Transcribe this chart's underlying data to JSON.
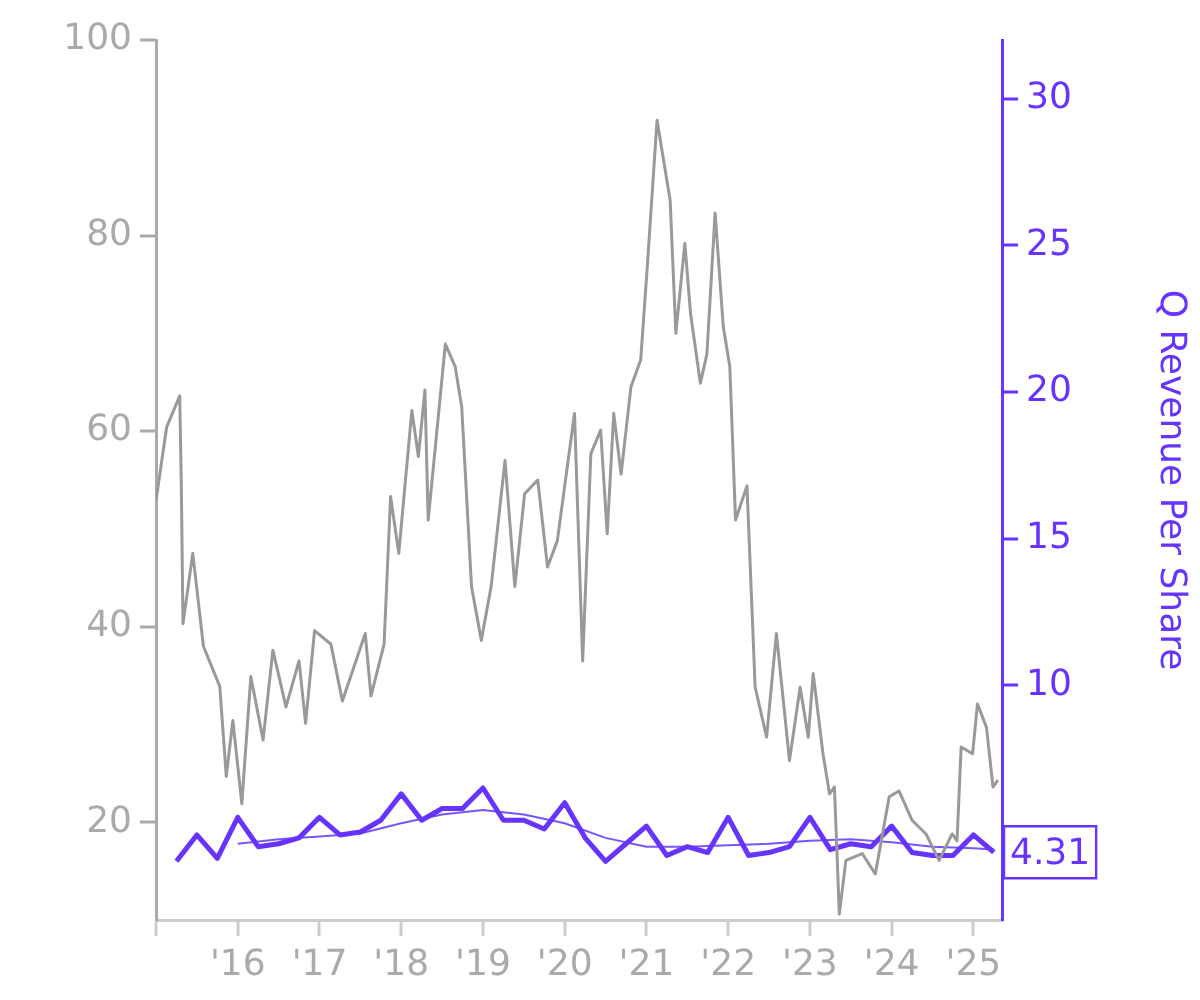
{
  "chart_data": {
    "type": "line",
    "y2label": "Q Revenue Per Share",
    "xlim": [
      2015,
      2025.35
    ],
    "xticks": [
      {
        "value": 2015,
        "label": null
      },
      {
        "value": 2016,
        "label": "'16"
      },
      {
        "value": 2017,
        "label": "'17"
      },
      {
        "value": 2018,
        "label": "'18"
      },
      {
        "value": 2019,
        "label": "'19"
      },
      {
        "value": 2020,
        "label": "'20"
      },
      {
        "value": 2021,
        "label": "'21"
      },
      {
        "value": 2022,
        "label": "'22"
      },
      {
        "value": 2023,
        "label": "'23"
      },
      {
        "value": 2024,
        "label": "'24"
      },
      {
        "value": 2025,
        "label": "'25"
      }
    ],
    "ylim": [
      10,
      100
    ],
    "yticks": [
      20,
      40,
      60,
      80,
      100
    ],
    "y2lim": [
      2,
      32
    ],
    "y2ticks": [
      10,
      15,
      20,
      25,
      30
    ],
    "grid": false,
    "legend": false,
    "marker": "none",
    "line_style": "solid",
    "series": [
      {
        "color": "#999999",
        "x": [
          2015.0,
          2015.13,
          2015.29,
          2015.31,
          2015.33,
          2015.45,
          2015.58,
          2015.78,
          2015.86,
          2015.94,
          2016.05,
          2016.16,
          2016.31,
          2016.43,
          2016.59,
          2016.75,
          2016.83,
          2016.94,
          2017.14,
          2017.28,
          2017.56,
          2017.63,
          2017.79,
          2017.87,
          2017.97,
          2018.13,
          2018.21,
          2018.29,
          2018.33,
          2018.54,
          2018.66,
          2018.74,
          2018.86,
          2018.98,
          2019.1,
          2019.27,
          2019.39,
          2019.51,
          2019.67,
          2019.79,
          2019.91,
          2020.0,
          2020.12,
          2020.22,
          2020.32,
          2020.44,
          2020.52,
          2020.6,
          2020.69,
          2020.81,
          2020.93,
          2021.01,
          2021.13,
          2021.21,
          2021.29,
          2021.36,
          2021.47,
          2021.54,
          2021.66,
          2021.74,
          2021.84,
          2021.94,
          2022.02,
          2022.09,
          2022.23,
          2022.33,
          2022.47,
          2022.59,
          2022.75,
          2022.88,
          2022.98,
          2023.04,
          2023.16,
          2023.24,
          2023.3,
          2023.36,
          2023.44,
          2023.64,
          2023.8,
          2023.97,
          2024.09,
          2024.25,
          2024.42,
          2024.58,
          2024.74,
          2024.8,
          2024.85,
          2024.99,
          2025.05,
          2025.16,
          2025.24,
          2025.3
        ],
        "values": [
          52.9,
          60.4,
          63.6,
          54.4,
          40.3,
          47.5,
          38,
          33.9,
          24.7,
          30.4,
          21.9,
          34.9,
          28.4,
          37.6,
          31.8,
          36.5,
          30.1,
          39.6,
          38.2,
          32.4,
          39.3,
          32.9,
          38.2,
          53.3,
          47.5,
          62.1,
          57.4,
          64.2,
          50.9,
          68.9,
          66.6,
          62.5,
          44.1,
          38.6,
          44.1,
          57,
          44.1,
          53.6,
          55,
          46.1,
          48.8,
          54.4,
          61.8,
          36.5,
          57.7,
          60.1,
          49.5,
          61.8,
          55.6,
          64.5,
          67.3,
          76.8,
          91.8,
          87.7,
          83.6,
          70,
          79.2,
          72,
          64.9,
          67.9,
          82.3,
          70.7,
          66.6,
          50.9,
          54.4,
          33.8,
          28.7,
          39.3,
          26.3,
          33.8,
          28.7,
          35.2,
          27,
          22.9,
          23.6,
          10.6,
          16.1,
          16.8,
          14.7,
          22.6,
          23.2,
          20.2,
          18.8,
          16.1,
          18.8,
          18.1,
          27.7,
          27,
          32.1,
          29.7,
          23.6,
          24.3
        ]
      },
      {
        "color": "#6633ff",
        "axis": "y2",
        "x": [
          2015.25,
          2015.5,
          2015.75,
          2016.0,
          2016.25,
          2016.5,
          2016.75,
          2017.0,
          2017.25,
          2017.5,
          2017.75,
          2018.0,
          2018.25,
          2018.5,
          2018.75,
          2019.0,
          2019.25,
          2019.5,
          2019.75,
          2020.0,
          2020.25,
          2020.5,
          2020.75,
          2021.0,
          2021.25,
          2021.5,
          2021.75,
          2022.0,
          2022.25,
          2022.5,
          2022.75,
          2023.0,
          2023.25,
          2023.5,
          2023.75,
          2024.0,
          2024.25,
          2024.5,
          2024.75,
          2025.0,
          2025.25
        ],
        "values": [
          4.0,
          4.9,
          4.1,
          5.5,
          4.5,
          4.6,
          4.8,
          5.5,
          4.9,
          5.0,
          5.4,
          6.3,
          5.4,
          5.8,
          5.8,
          6.5,
          5.4,
          5.4,
          5.1,
          6.0,
          4.8,
          4.0,
          4.6,
          5.2,
          4.2,
          4.5,
          4.3,
          5.5,
          4.2,
          4.3,
          4.5,
          5.5,
          4.4,
          4.6,
          4.5,
          5.2,
          4.3,
          4.2,
          4.2,
          4.9,
          4.31
        ],
        "value_labels": [
          null,
          null,
          null,
          null,
          null,
          null,
          null,
          null,
          null,
          null,
          null,
          null,
          null,
          null,
          null,
          null,
          null,
          null,
          null,
          null,
          null,
          null,
          null,
          null,
          null,
          null,
          null,
          null,
          null,
          null,
          null,
          null,
          null,
          null,
          null,
          null,
          null,
          null,
          null,
          null,
          "4.31"
        ]
      },
      {
        "color": "#7755ff",
        "axis": "y2",
        "x": [
          2016.0,
          2016.5,
          2017.0,
          2017.5,
          2018.0,
          2018.5,
          2019.0,
          2019.5,
          2020.0,
          2020.5,
          2021.0,
          2021.5,
          2022.0,
          2022.5,
          2023.0,
          2023.5,
          2024.0,
          2024.5,
          2025.0,
          2025.25
        ],
        "values": [
          4.6,
          4.75,
          4.85,
          4.95,
          5.3,
          5.6,
          5.75,
          5.6,
          5.3,
          4.8,
          4.5,
          4.5,
          4.55,
          4.6,
          4.7,
          4.75,
          4.65,
          4.5,
          4.45,
          4.4
        ]
      }
    ]
  }
}
